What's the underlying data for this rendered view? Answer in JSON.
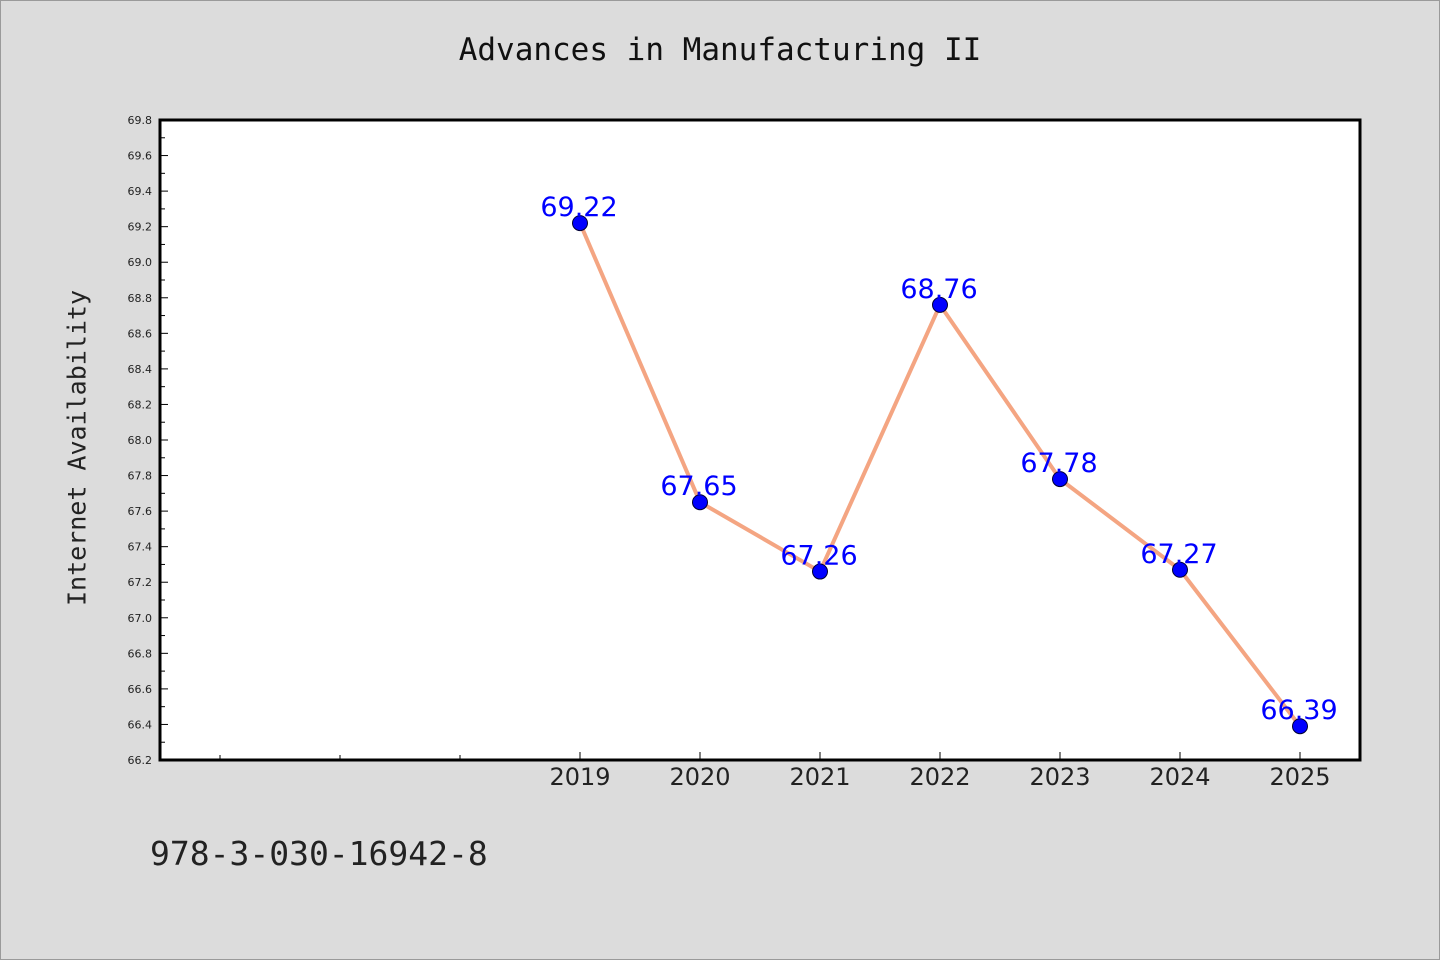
{
  "chart_data": {
    "type": "line",
    "title": "Advances in Manufacturing II",
    "xlabel": "",
    "ylabel": "Internet Availability",
    "categories": [
      "2019",
      "2020",
      "2021",
      "2022",
      "2023",
      "2024",
      "2025"
    ],
    "series": [
      {
        "values": [
          69.22,
          67.65,
          67.26,
          68.76,
          67.78,
          67.27,
          66.39
        ],
        "data_labels": [
          "69.22",
          "67.65",
          "67.26",
          "68.76",
          "67.78",
          "67.27",
          "66.39"
        ]
      }
    ],
    "ylim": [
      66.2,
      69.8
    ],
    "yticks": [
      "66.2",
      "66.4",
      "66.6",
      "66.8",
      "67.0",
      "67.2",
      "67.4",
      "67.6",
      "67.8",
      "68.0",
      "68.2",
      "68.4",
      "68.6",
      "68.8",
      "69.0",
      "69.2",
      "69.4",
      "69.6",
      "69.8"
    ],
    "grid": false,
    "legend": "none",
    "colors": {
      "line": "#f4a582",
      "marker": "#0000ff",
      "label": "#0000ff",
      "background": "#dcdcdc",
      "plot_background": "#ffffff"
    }
  },
  "footnote": "978-3-030-16942-8"
}
